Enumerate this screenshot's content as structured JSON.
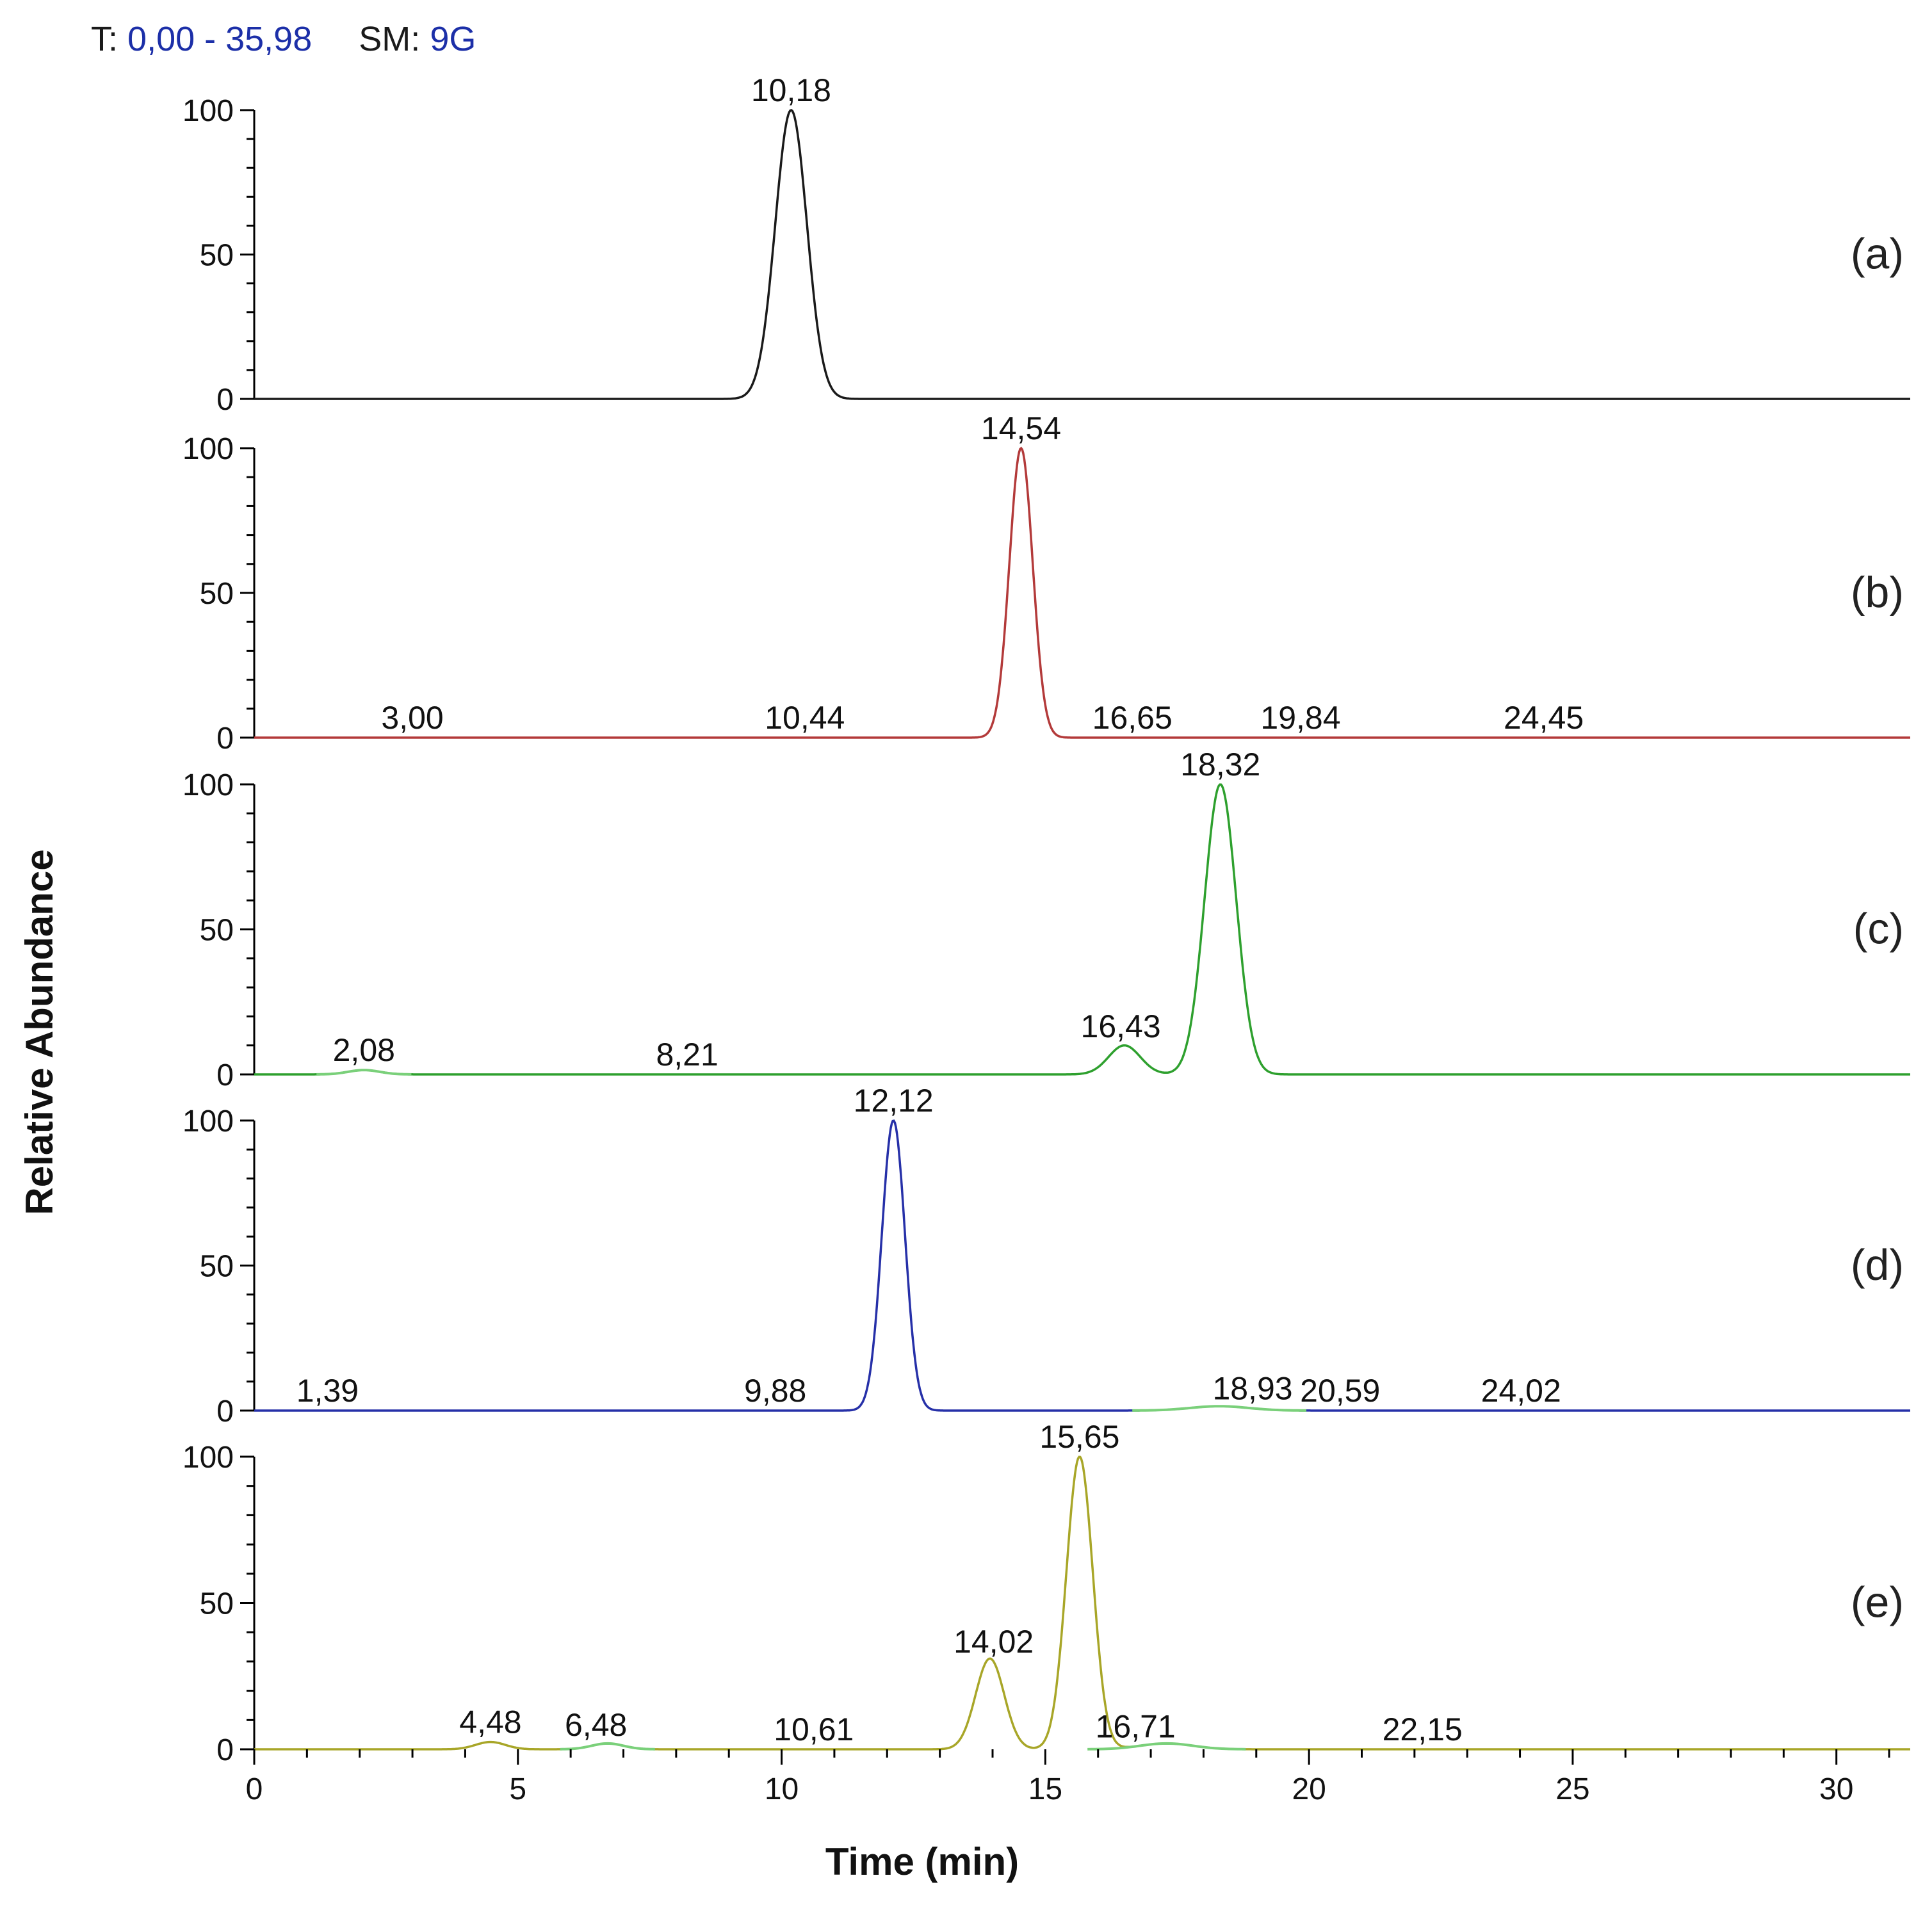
{
  "header": {
    "rt_key": "T:",
    "rt_value": "0,00 - 35,98",
    "sm_key": "SM:",
    "sm_value": "9G"
  },
  "colors": {
    "a": "#1a1a1a",
    "b": "#b33a3a",
    "c": "#2ea02e",
    "d": "#2630a8",
    "e": "#a8a628",
    "minor_peak": "#7ad07a",
    "axis": "#000000"
  },
  "chart_data": {
    "type": "line",
    "title": "",
    "xlabel": "Time (min)",
    "ylabel": "Relative Abundance",
    "xlim": [
      0,
      31.4
    ],
    "ylim": [
      0,
      100
    ],
    "x_ticks": [
      0,
      5,
      10,
      15,
      20,
      25,
      30
    ],
    "x_tick_labels": [
      "0",
      "5",
      "10",
      "15",
      "20",
      "25",
      "30"
    ],
    "y_ticks": [
      0,
      50,
      100
    ],
    "y_tick_labels": [
      "0",
      "50",
      "100"
    ],
    "panels": [
      {
        "id": "a",
        "tag": "(a)",
        "color_key": "a",
        "peaks": [
          {
            "rt": 10.18,
            "height": 100,
            "width": 0.3
          }
        ],
        "labels": [
          {
            "text": "10,18",
            "rt": 10.18
          }
        ]
      },
      {
        "id": "b",
        "tag": "(b)",
        "color_key": "b",
        "peaks": [
          {
            "rt": 14.54,
            "height": 100,
            "width": 0.22
          }
        ],
        "labels": [
          {
            "text": "14,54",
            "rt": 14.54
          },
          {
            "text": "3,00",
            "rt": 3.0
          },
          {
            "text": "10,44",
            "rt": 10.44
          },
          {
            "text": "16,65",
            "rt": 16.65
          },
          {
            "text": "19,84",
            "rt": 19.84
          },
          {
            "text": "24,45",
            "rt": 24.45
          }
        ]
      },
      {
        "id": "c",
        "tag": "(c)",
        "color_key": "c",
        "peaks": [
          {
            "rt": 18.32,
            "height": 100,
            "width": 0.3
          },
          {
            "rt": 16.5,
            "height": 10,
            "width": 0.3
          },
          {
            "rt": 2.08,
            "height": 1.5,
            "width": 0.3,
            "minor": true
          }
        ],
        "labels": [
          {
            "text": "18,32",
            "rt": 18.32
          },
          {
            "text": "16,43",
            "rt": 16.43
          },
          {
            "text": "2,08",
            "rt": 2.08
          },
          {
            "text": "8,21",
            "rt": 8.21
          }
        ]
      },
      {
        "id": "d",
        "tag": "(d)",
        "color_key": "d",
        "peaks": [
          {
            "rt": 12.12,
            "height": 100,
            "width": 0.22
          },
          {
            "rt": 18.3,
            "height": 1.5,
            "width": 0.55,
            "minor": true
          }
        ],
        "labels": [
          {
            "text": "12,12",
            "rt": 12.12
          },
          {
            "text": "1,39",
            "rt": 1.39
          },
          {
            "text": "9,88",
            "rt": 9.88
          },
          {
            "text": "18,93",
            "rt": 18.93
          },
          {
            "text": "20,59",
            "rt": 20.59
          },
          {
            "text": "24,02",
            "rt": 24.02
          }
        ]
      },
      {
        "id": "e",
        "tag": "(e)",
        "color_key": "e",
        "peaks": [
          {
            "rt": 15.65,
            "height": 100,
            "width": 0.25
          },
          {
            "rt": 13.95,
            "height": 31,
            "width": 0.27
          },
          {
            "rt": 4.48,
            "height": 2.5,
            "width": 0.28
          },
          {
            "rt": 6.7,
            "height": 2,
            "width": 0.3,
            "minor": true
          },
          {
            "rt": 17.3,
            "height": 2,
            "width": 0.5,
            "minor": true
          }
        ],
        "labels": [
          {
            "text": "15,65",
            "rt": 15.65
          },
          {
            "text": "14,02",
            "rt": 14.02
          },
          {
            "text": "4,48",
            "rt": 4.48
          },
          {
            "text": "6,48",
            "rt": 6.48
          },
          {
            "text": "10,61",
            "rt": 10.61
          },
          {
            "text": "16,71",
            "rt": 16.71
          },
          {
            "text": "22,15",
            "rt": 22.15
          }
        ]
      }
    ]
  }
}
